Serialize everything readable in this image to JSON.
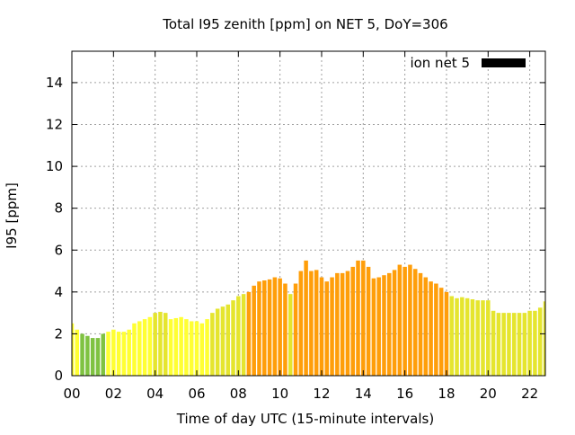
{
  "chart_data": {
    "type": "bar",
    "title": "Total I95 zenith [ppm] on NET 5, DoY=306",
    "xlabel": "Time of day UTC (15-minute intervals)",
    "ylabel": "I95 [ppm]",
    "xlim": [
      0,
      22.75
    ],
    "ylim": [
      0,
      15.5
    ],
    "x_ticks": [
      "00",
      "02",
      "04",
      "06",
      "08",
      "10",
      "12",
      "14",
      "16",
      "18",
      "20",
      "22"
    ],
    "x_tick_values": [
      0,
      2,
      4,
      6,
      8,
      10,
      12,
      14,
      16,
      18,
      20,
      22
    ],
    "y_ticks": [
      0,
      2,
      4,
      6,
      8,
      10,
      12,
      14
    ],
    "grid": true,
    "legend": {
      "placement": "top-right",
      "label": "ion net 5",
      "color": "#000000"
    },
    "bar_interval_hours": 0.25,
    "x_start": 0,
    "values": [
      2.5,
      2.2,
      2.0,
      1.9,
      1.8,
      1.8,
      2.0,
      2.1,
      2.2,
      2.1,
      2.1,
      2.2,
      2.5,
      2.6,
      2.7,
      2.8,
      3.0,
      3.05,
      3.0,
      2.7,
      2.75,
      2.8,
      2.7,
      2.6,
      2.6,
      2.5,
      2.7,
      3.0,
      3.2,
      3.3,
      3.4,
      3.6,
      3.8,
      3.9,
      4.0,
      4.3,
      4.5,
      4.55,
      4.6,
      4.7,
      4.65,
      4.4,
      3.9,
      4.4,
      5.0,
      5.5,
      5.0,
      5.05,
      4.7,
      4.5,
      4.7,
      4.9,
      4.9,
      5.0,
      5.2,
      5.5,
      5.5,
      5.2,
      4.65,
      4.7,
      4.8,
      4.9,
      5.05,
      5.3,
      5.2,
      5.3,
      5.1,
      4.9,
      4.7,
      4.5,
      4.4,
      4.2,
      4.0,
      3.8,
      3.7,
      3.75,
      3.7,
      3.65,
      3.6,
      3.6,
      3.6,
      3.1,
      3.0,
      3.0,
      3.0,
      3.0,
      3.0,
      3.0,
      3.1,
      3.1,
      3.25,
      3.55,
      3.5,
      3.3
    ],
    "color_scale": {
      "green": {
        "color": "#7fc241",
        "below": 2.05
      },
      "yellow": {
        "color": "#ffff33",
        "below": 3.0
      },
      "gold": {
        "color": "#e5e52e",
        "below": 4.0
      },
      "orange": {
        "color": "#ff9e0a"
      }
    }
  }
}
